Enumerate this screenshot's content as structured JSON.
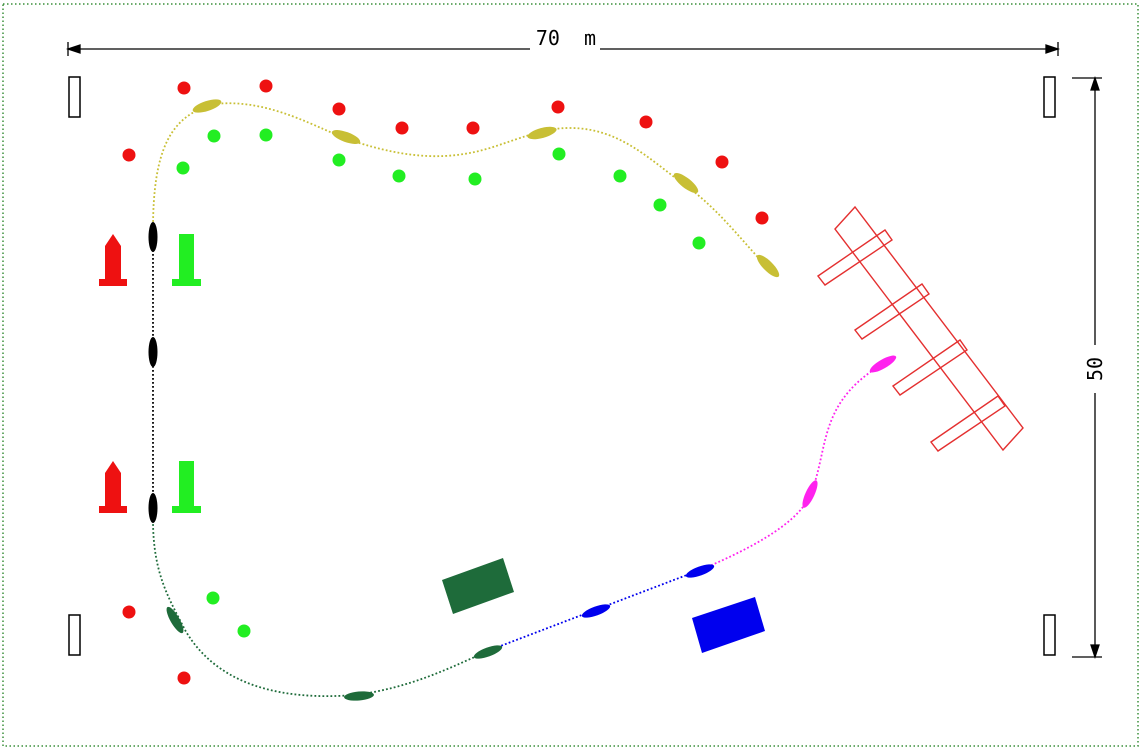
{
  "dimensions": {
    "width_label": "70  m",
    "height_label": "50"
  },
  "colors": {
    "border": "#3a8f3a",
    "red_buoy": "#ee1111",
    "green_buoy": "#22ee22",
    "path_yellow": "#c8bf35",
    "path_black": "#000000",
    "path_darkgreen": "#1e6b3a",
    "path_blue": "#0000ee",
    "path_magenta": "#ff22ee",
    "dock": "#e43030",
    "dark_green_box": "#1e6b3a",
    "blue_box": "#0000ee"
  },
  "elements": {
    "corner_markers": 4,
    "red_buoys": 14,
    "green_buoys": 14,
    "gate_markers": 4,
    "dock": 1,
    "obstacle_boxes": 2,
    "path_segments": 5,
    "boats": 15
  }
}
